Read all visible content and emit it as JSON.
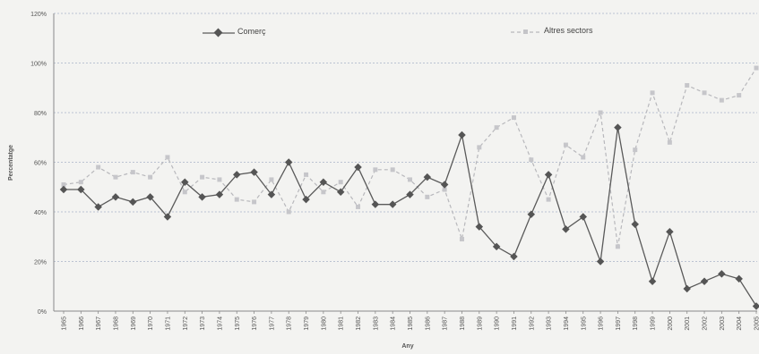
{
  "chart_data": {
    "type": "line",
    "title": "",
    "xlabel": "Any",
    "ylabel": "Percentatge",
    "ylim": [
      0,
      120
    ],
    "yticks": [
      "0%",
      "20%",
      "40%",
      "60%",
      "80%",
      "100%",
      "120%"
    ],
    "ytick_values": [
      0,
      20,
      40,
      60,
      80,
      100,
      120
    ],
    "grid": "horizontal dashed",
    "legend_position": "top",
    "categories": [
      "1965",
      "1966",
      "1967",
      "1968",
      "1969",
      "1970",
      "1971",
      "1972",
      "1973",
      "1974",
      "1975",
      "1976",
      "1977",
      "1978",
      "1979",
      "1980",
      "1981",
      "1982",
      "1983",
      "1984",
      "1985",
      "1986",
      "1987",
      "1988",
      "1989",
      "1990",
      "1991",
      "1992",
      "1993",
      "1994",
      "1995",
      "1996",
      "1997",
      "1998",
      "1999",
      "2000",
      "2001",
      "2002",
      "2003",
      "2004",
      "2005"
    ],
    "series": [
      {
        "name": "Comerç",
        "color": "#5a5a5a",
        "marker": "diamond",
        "line_style": "solid",
        "values": [
          49,
          49,
          42,
          46,
          44,
          46,
          38,
          52,
          46,
          47,
          55,
          56,
          47,
          60,
          45,
          52,
          48,
          58,
          43,
          43,
          47,
          54,
          51,
          71,
          34,
          26,
          22,
          39,
          55,
          33,
          38,
          20,
          74,
          35,
          12,
          32,
          9,
          12,
          15,
          13,
          2
        ]
      },
      {
        "name": "Altres sectors",
        "color": "#b8b8bc",
        "marker": "square",
        "line_style": "dashed",
        "values": [
          51,
          52,
          58,
          54,
          56,
          54,
          62,
          48,
          54,
          53,
          45,
          44,
          53,
          40,
          55,
          48,
          52,
          42,
          57,
          57,
          53,
          46,
          49,
          29,
          66,
          74,
          78,
          61,
          45,
          67,
          62,
          80,
          26,
          65,
          88,
          68,
          91,
          88,
          85,
          87,
          98
        ]
      }
    ]
  }
}
